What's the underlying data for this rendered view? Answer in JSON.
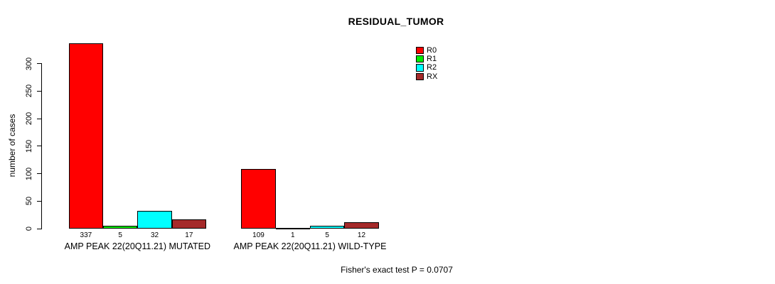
{
  "title": "RESIDUAL_TUMOR",
  "footer": "Fisher's exact test P = 0.0707",
  "legend": {
    "position": "top-right-inside",
    "entries": [
      {
        "label": "R0",
        "color": "#FF0000"
      },
      {
        "label": "R1",
        "color": "#00EE00"
      },
      {
        "label": "R2",
        "color": "#00FFFF"
      },
      {
        "label": "RX",
        "color": "#A52A2A"
      }
    ]
  },
  "chart_data": {
    "type": "bar",
    "title": "RESIDUAL_TUMOR",
    "xlabel": "",
    "ylabel": "number of cases",
    "categories": [
      "AMP PEAK 22(20Q11.21) MUTATED",
      "AMP PEAK 22(20Q11.21) WILD-TYPE"
    ],
    "series": [
      {
        "name": "R0",
        "color": "#FF0000",
        "values": [
          337,
          109
        ]
      },
      {
        "name": "R1",
        "color": "#00EE00",
        "values": [
          5,
          1
        ]
      },
      {
        "name": "R2",
        "color": "#00FFFF",
        "values": [
          32,
          5
        ]
      },
      {
        "name": "RX",
        "color": "#A52A2A",
        "values": [
          17,
          12
        ]
      }
    ],
    "bar_value_labels": [
      [
        337,
        5,
        32,
        17
      ],
      [
        109,
        1,
        5,
        12
      ]
    ],
    "yticks": [
      0,
      50,
      100,
      150,
      200,
      250,
      300
    ],
    "ylim": [
      0,
      337
    ],
    "grid": false,
    "bar_border_color": "#000000",
    "annotation": "Fisher's exact test P = 0.0707"
  }
}
